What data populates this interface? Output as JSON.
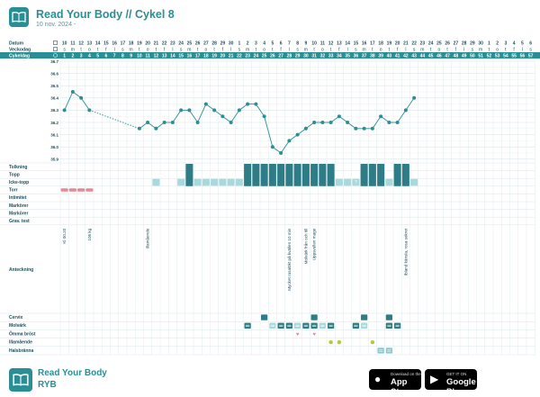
{
  "header": {
    "title": "Read Your Body // Cykel 8",
    "subtitle": "10 nov. 2024 -"
  },
  "row_labels": {
    "datum": "Datum",
    "veckodag": "Veckodag",
    "cykeldag": "Cykeldag",
    "tolkning": "Tolkning",
    "topp": "Topp",
    "icke_topp": "Icke-topp",
    "torr": "Torr",
    "intimitet": "Intimitet",
    "markorer1": "Markörer",
    "markorer2": "Markörer",
    "grav_test": "Grav. test",
    "anteckning": "Anteckning",
    "cervix": "Cervix",
    "molvark": "Molvärk",
    "omma_brost": "Ömma bröst",
    "illamaende": "Illamående",
    "halsbranna": "Halsbränna"
  },
  "dates": [
    "10",
    "11",
    "12",
    "13",
    "14",
    "15",
    "16",
    "17",
    "18",
    "19",
    "20",
    "21",
    "22",
    "23",
    "24",
    "25",
    "26",
    "27",
    "28",
    "29",
    "30",
    "1",
    "2",
    "3",
    "4",
    "5",
    "6",
    "7",
    "8",
    "9",
    "10",
    "11",
    "12",
    "13",
    "14",
    "15",
    "16",
    "17",
    "18",
    "19",
    "20",
    "21",
    "22",
    "23",
    "24",
    "25",
    "26",
    "27",
    "28",
    "29",
    "30",
    "1",
    "2",
    "3",
    "4",
    "5",
    "6"
  ],
  "weekdays": [
    "s",
    "m",
    "t",
    "o",
    "t",
    "f",
    "l",
    "s",
    "m",
    "t",
    "o",
    "t",
    "f",
    "l",
    "s",
    "m",
    "t",
    "o",
    "t",
    "f",
    "l",
    "s",
    "m",
    "t",
    "o",
    "t",
    "f",
    "l",
    "s",
    "m",
    "t",
    "o",
    "t",
    "f",
    "l",
    "s",
    "m",
    "t",
    "o",
    "t",
    "f",
    "l",
    "s",
    "m",
    "t",
    "o",
    "t",
    "f",
    "l",
    "s",
    "m",
    "t",
    "o",
    "t",
    "f",
    "l",
    "s"
  ],
  "temp_ticks": [
    "36.7",
    "36.6",
    "36.5",
    "36.4",
    "36.3",
    "36.2",
    "36.1",
    "36.0",
    "35.9"
  ],
  "temperatures": [
    {
      "day": 1,
      "temp": 36.3
    },
    {
      "day": 2,
      "temp": 36.45
    },
    {
      "day": 3,
      "temp": 36.4
    },
    {
      "day": 4,
      "temp": 36.3
    },
    {
      "day": 10,
      "temp": 36.15
    },
    {
      "day": 11,
      "temp": 36.2
    },
    {
      "day": 12,
      "temp": 36.15
    },
    {
      "day": 13,
      "temp": 36.2
    },
    {
      "day": 14,
      "temp": 36.2
    },
    {
      "day": 15,
      "temp": 36.3
    },
    {
      "day": 16,
      "temp": 36.3
    },
    {
      "day": 17,
      "temp": 36.2
    },
    {
      "day": 18,
      "temp": 36.35
    },
    {
      "day": 19,
      "temp": 36.3
    },
    {
      "day": 20,
      "temp": 36.25
    },
    {
      "day": 21,
      "temp": 36.2
    },
    {
      "day": 22,
      "temp": 36.3
    },
    {
      "day": 23,
      "temp": 36.35
    },
    {
      "day": 24,
      "temp": 36.35
    },
    {
      "day": 25,
      "temp": 36.25
    },
    {
      "day": 26,
      "temp": 36.0
    },
    {
      "day": 27,
      "temp": 35.95
    },
    {
      "day": 28,
      "temp": 36.05
    },
    {
      "day": 29,
      "temp": 36.1
    },
    {
      "day": 30,
      "temp": 36.15
    },
    {
      "day": 31,
      "temp": 36.2
    },
    {
      "day": 32,
      "temp": 36.2
    },
    {
      "day": 33,
      "temp": 36.2
    },
    {
      "day": 34,
      "temp": 36.25
    },
    {
      "day": 35,
      "temp": 36.2
    },
    {
      "day": 36,
      "temp": 36.15
    },
    {
      "day": 37,
      "temp": 36.15
    },
    {
      "day": 38,
      "temp": 36.15
    },
    {
      "day": 39,
      "temp": 36.25
    },
    {
      "day": 40,
      "temp": 36.2
    },
    {
      "day": 41,
      "temp": 36.2
    },
    {
      "day": 42,
      "temp": 36.3
    },
    {
      "day": 43,
      "temp": 36.4
    }
  ],
  "topp_days": [
    16,
    23,
    24,
    25,
    26,
    27,
    28,
    29,
    30,
    31,
    32,
    33,
    37,
    38,
    39,
    41,
    42
  ],
  "icke_topp_days": [
    12,
    15,
    17,
    18,
    19,
    20,
    21,
    22,
    34,
    35,
    36,
    40,
    43
  ],
  "dry_days": [
    1,
    2,
    3,
    4
  ],
  "dry_marker_text": "?",
  "dry_marker_day": 36,
  "notes": [
    {
      "day": 1,
      "text": "Kl 00.20"
    },
    {
      "day": 4,
      "text": "106 kg"
    },
    {
      "day": 11,
      "text": "Illamående"
    },
    {
      "day": 28,
      "text": "Mycket rosalökt på kvällen 10 min"
    },
    {
      "day": 30,
      "text": "Molvärk från och till"
    },
    {
      "day": 31,
      "text": "Uppsvullen mage"
    },
    {
      "day": 42,
      "text": "Ibland känsla, rosa sekret"
    }
  ],
  "cervix_days": [
    25,
    31,
    37,
    40
  ],
  "molvark_days": [
    23,
    26,
    27,
    28,
    29,
    30,
    31,
    32,
    33,
    36,
    37,
    40,
    41
  ],
  "omma_days": [
    29,
    31
  ],
  "illamaende_days": [
    33,
    34,
    38
  ],
  "halsbranna_days": [
    39,
    40
  ],
  "footer": {
    "brand": "Read Your Body",
    "brand_short": "RYB",
    "appstore_small": "Download on the",
    "appstore_big": "App Store",
    "play_small": "GET IT ON",
    "play_big": "Google Play"
  },
  "colors": {
    "accent": "#2a8f94",
    "header_band": "#2a8f94",
    "topp": "#2e7d86",
    "icke_topp": "#a6dade",
    "dry": "#e98793",
    "grid": "#d8e6e9"
  }
}
